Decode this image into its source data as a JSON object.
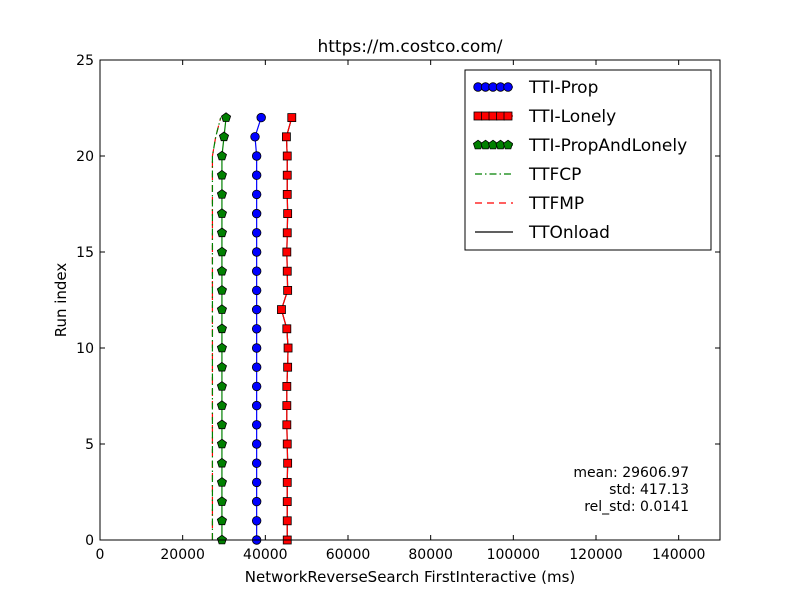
{
  "chart_data": {
    "type": "line",
    "title": "https://m.costco.com/",
    "xlabel": "NetworkReverseSearch FirstInteractive (ms)",
    "ylabel": "Run index",
    "xlim": [
      0,
      150000
    ],
    "ylim": [
      0,
      25
    ],
    "xticks": [
      0,
      20000,
      40000,
      60000,
      80000,
      100000,
      120000,
      140000
    ],
    "yticks": [
      0,
      5,
      10,
      15,
      20,
      25
    ],
    "grid": false,
    "legend_position": "top-right",
    "series": [
      {
        "name": "TTI-Prop",
        "color": "#0000ff",
        "marker": "circle",
        "line": "solid",
        "x": [
          37900,
          37900,
          37900,
          37900,
          37900,
          37900,
          37900,
          37900,
          37900,
          37900,
          37900,
          37900,
          37900,
          37900,
          37900,
          37900,
          37900,
          37900,
          37900,
          37900,
          37900,
          37500,
          39000
        ],
        "y": [
          0,
          1,
          2,
          3,
          4,
          5,
          6,
          7,
          8,
          9,
          10,
          11,
          12,
          13,
          14,
          15,
          16,
          17,
          18,
          19,
          20,
          21,
          22
        ]
      },
      {
        "name": "TTI-Lonely",
        "color": "#ff0000",
        "marker": "square",
        "line": "solid",
        "x": [
          45300,
          45300,
          45300,
          45300,
          45400,
          45300,
          45200,
          45200,
          45200,
          45400,
          45500,
          45200,
          43900,
          45400,
          45300,
          45200,
          45300,
          45400,
          45300,
          45300,
          45300,
          45100,
          46400
        ],
        "y": [
          0,
          1,
          2,
          3,
          4,
          5,
          6,
          7,
          8,
          9,
          10,
          11,
          12,
          13,
          14,
          15,
          16,
          17,
          18,
          19,
          20,
          21,
          22
        ]
      },
      {
        "name": "TTI-PropAndLonely",
        "color": "#008000",
        "marker": "pentagon",
        "line": "solid",
        "x": [
          29500,
          29500,
          29500,
          29500,
          29500,
          29500,
          29500,
          29500,
          29500,
          29500,
          29500,
          29500,
          29500,
          29500,
          29500,
          29500,
          29500,
          29500,
          29500,
          29500,
          29500,
          30000,
          30500
        ],
        "y": [
          0,
          1,
          2,
          3,
          4,
          5,
          6,
          7,
          8,
          9,
          10,
          11,
          12,
          13,
          14,
          15,
          16,
          17,
          18,
          19,
          20,
          21,
          22
        ]
      },
      {
        "name": "TTFCP",
        "color": "#008000",
        "marker": "none",
        "line": "dashdot",
        "x": [
          27200,
          27200,
          27200,
          27200,
          27200,
          27200,
          27200,
          27200,
          27200,
          27200,
          27200,
          27200,
          27200,
          27200,
          27200,
          27200,
          27200,
          27200,
          27200,
          27200,
          27200,
          28000,
          29200
        ],
        "y": [
          0,
          1,
          2,
          3,
          4,
          5,
          6,
          7,
          8,
          9,
          10,
          11,
          12,
          13,
          14,
          15,
          16,
          17,
          18,
          19,
          20,
          21,
          22
        ]
      },
      {
        "name": "TTFMP",
        "color": "#ff0000",
        "marker": "none",
        "line": "dashed",
        "x": [
          27200,
          27200,
          27200,
          27200,
          27200,
          27200,
          27200,
          27200,
          27200,
          27200,
          27200,
          27200,
          27200,
          27200,
          27200,
          27200,
          27200,
          27200,
          27200,
          27200,
          27200,
          28000,
          29200
        ],
        "y": [
          0,
          1,
          2,
          3,
          4,
          5,
          6,
          7,
          8,
          9,
          10,
          11,
          12,
          13,
          14,
          15,
          16,
          17,
          18,
          19,
          20,
          21,
          22
        ]
      },
      {
        "name": "TTOnload",
        "color": "#000000",
        "marker": "none",
        "line": "solid",
        "x": [
          45300,
          45300,
          45300,
          45300,
          45400,
          45300,
          45200,
          45200,
          45200,
          45400,
          45500,
          45200,
          43900,
          45400,
          45300,
          45200,
          45300,
          45400,
          45300,
          45300,
          45300,
          45100,
          46400
        ],
        "y": [
          0,
          1,
          2,
          3,
          4,
          5,
          6,
          7,
          8,
          9,
          10,
          11,
          12,
          13,
          14,
          15,
          16,
          17,
          18,
          19,
          20,
          21,
          22
        ]
      }
    ],
    "annotations": [
      "mean: 29606.97",
      "std: 417.13",
      "rel_std: 0.0141"
    ]
  }
}
